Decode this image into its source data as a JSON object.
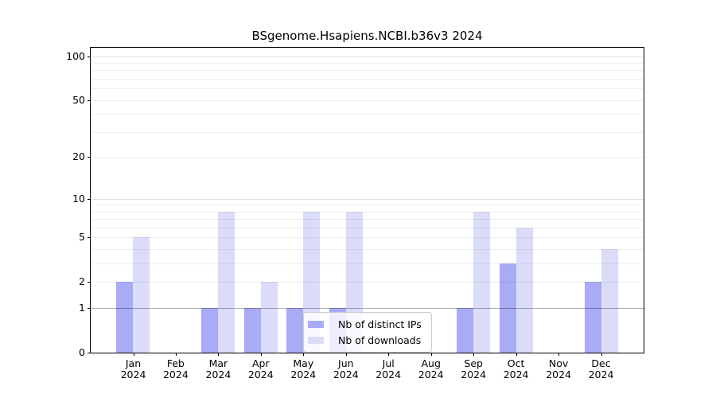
{
  "title": "BSgenome.Hsapiens.NCBI.b36v3 2024",
  "legend": {
    "items": [
      {
        "label": "Nb of distinct IPs",
        "color": "#a9abf7"
      },
      {
        "label": "Nb of downloads",
        "color": "#dadcfa"
      }
    ]
  },
  "chart_data": {
    "type": "bar",
    "title": "BSgenome.Hsapiens.NCBI.b36v3 2024",
    "categories": [
      "Jan 2024",
      "Feb 2024",
      "Mar 2024",
      "Apr 2024",
      "May 2024",
      "Jun 2024",
      "Jul 2024",
      "Aug 2024",
      "Sep 2024",
      "Oct 2024",
      "Nov 2024",
      "Dec 2024"
    ],
    "series": [
      {
        "name": "Nb of distinct IPs",
        "color": "#a9abf7",
        "values": [
          2,
          0,
          1,
          1,
          1,
          1,
          0,
          0,
          1,
          3,
          0,
          2
        ]
      },
      {
        "name": "Nb of downloads",
        "color": "#dadcfa",
        "values": [
          5,
          0,
          8,
          2,
          8,
          8,
          0,
          0,
          8,
          6,
          0,
          4
        ]
      }
    ],
    "xlabel": "",
    "ylabel": "",
    "yscale": "log1p",
    "ylim": [
      0,
      115
    ],
    "y_ticks": [
      0,
      1,
      2,
      5,
      10,
      20,
      50,
      100
    ],
    "y_gridline_values": [
      2,
      3,
      4,
      5,
      6,
      7,
      8,
      9,
      10,
      20,
      30,
      40,
      50,
      60,
      70,
      80,
      90,
      100
    ],
    "y_emphasized_gridline": 1,
    "grid": "horizontal",
    "legend_position": "lower center"
  }
}
